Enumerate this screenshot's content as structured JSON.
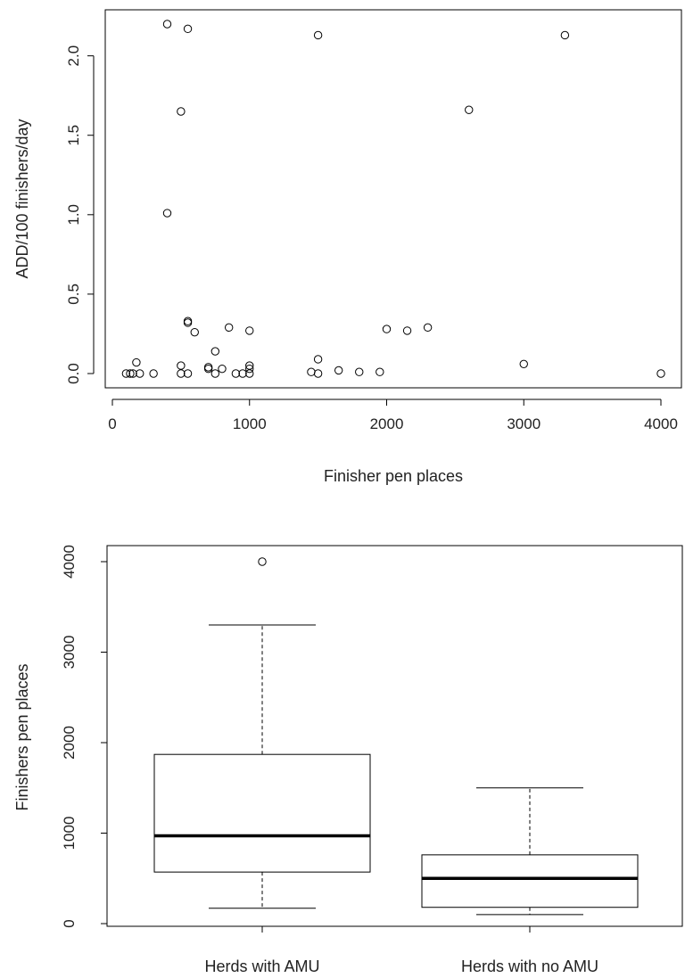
{
  "chart_data": [
    {
      "type": "scatter",
      "xlabel": "Finisher pen places",
      "ylabel": "ADD/100 finishers/day",
      "xlim": [
        0,
        4000
      ],
      "ylim": [
        0,
        2.2
      ],
      "x_ticks": [
        0,
        1000,
        2000,
        3000,
        4000
      ],
      "x_tick_labels": [
        "0",
        "1000",
        "2000",
        "3000",
        "4000"
      ],
      "y_ticks": [
        0.0,
        0.5,
        1.0,
        1.5,
        2.0
      ],
      "y_tick_labels": [
        "0.0",
        "0.5",
        "1.0",
        "1.5",
        "2.0"
      ],
      "marker": "open-circle",
      "points": [
        {
          "x": 400,
          "y": 2.2
        },
        {
          "x": 550,
          "y": 2.17
        },
        {
          "x": 1500,
          "y": 2.13
        },
        {
          "x": 3300,
          "y": 2.13
        },
        {
          "x": 500,
          "y": 1.65
        },
        {
          "x": 2600,
          "y": 1.66
        },
        {
          "x": 400,
          "y": 1.01
        },
        {
          "x": 550,
          "y": 0.33
        },
        {
          "x": 550,
          "y": 0.32
        },
        {
          "x": 600,
          "y": 0.26
        },
        {
          "x": 850,
          "y": 0.29
        },
        {
          "x": 1000,
          "y": 0.27
        },
        {
          "x": 2000,
          "y": 0.28
        },
        {
          "x": 2150,
          "y": 0.27
        },
        {
          "x": 2300,
          "y": 0.29
        },
        {
          "x": 750,
          "y": 0.14
        },
        {
          "x": 1500,
          "y": 0.09
        },
        {
          "x": 3000,
          "y": 0.06
        },
        {
          "x": 175,
          "y": 0.07
        },
        {
          "x": 500,
          "y": 0.05
        },
        {
          "x": 700,
          "y": 0.04
        },
        {
          "x": 700,
          "y": 0.03
        },
        {
          "x": 800,
          "y": 0.03
        },
        {
          "x": 1000,
          "y": 0.05
        },
        {
          "x": 1000,
          "y": 0.03
        },
        {
          "x": 1450,
          "y": 0.01
        },
        {
          "x": 1650,
          "y": 0.02
        },
        {
          "x": 1800,
          "y": 0.01
        },
        {
          "x": 1950,
          "y": 0.01
        },
        {
          "x": 100,
          "y": 0.0
        },
        {
          "x": 130,
          "y": 0.0
        },
        {
          "x": 150,
          "y": 0.0
        },
        {
          "x": 200,
          "y": 0.0
        },
        {
          "x": 300,
          "y": 0.0
        },
        {
          "x": 500,
          "y": 0.0
        },
        {
          "x": 550,
          "y": 0.0
        },
        {
          "x": 750,
          "y": 0.0
        },
        {
          "x": 900,
          "y": 0.0
        },
        {
          "x": 950,
          "y": 0.0
        },
        {
          "x": 1000,
          "y": 0.0
        },
        {
          "x": 1500,
          "y": 0.0
        },
        {
          "x": 4000,
          "y": 0.0
        }
      ]
    },
    {
      "type": "box",
      "xlabel": "",
      "ylabel": "Finishers pen places",
      "ylim": [
        0,
        4000
      ],
      "y_ticks": [
        0,
        1000,
        2000,
        3000,
        4000
      ],
      "y_tick_labels": [
        "0",
        "1000",
        "2000",
        "3000",
        "4000"
      ],
      "categories": [
        "Herds with AMU",
        "Herds with no AMU"
      ],
      "boxes": [
        {
          "whisker_low": 170,
          "q1": 570,
          "median": 970,
          "q3": 1870,
          "whisker_high": 3300,
          "outliers": [
            4000
          ]
        },
        {
          "whisker_low": 100,
          "q1": 180,
          "median": 500,
          "q3": 760,
          "whisker_high": 1500,
          "outliers": []
        }
      ]
    }
  ]
}
